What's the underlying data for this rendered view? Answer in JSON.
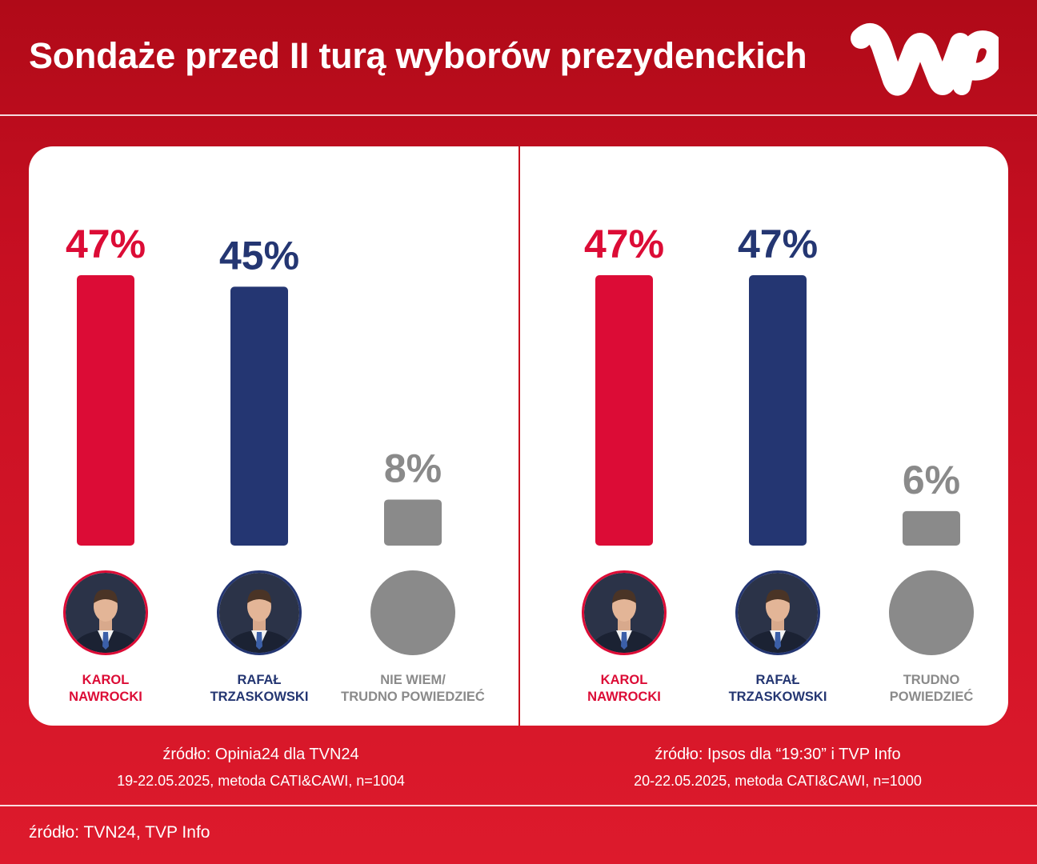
{
  "title": "Sondaże przed II turą wyborów prezydenckich",
  "logo": {
    "name": "wp-logo"
  },
  "colors": {
    "red": "#dc0c36",
    "navy": "#243672",
    "gray": "#8a8a8a",
    "background": "#c70f22"
  },
  "chart_data": [
    {
      "type": "bar",
      "categories": [
        "KAROL\nNAWROCKI",
        "RAFAŁ\nTRZASKOWSKI",
        "NIE WIEM/\nTRUDNO POWIEDZIEĆ"
      ],
      "values": [
        47,
        45,
        8
      ],
      "value_labels": [
        "47%",
        "45%",
        "8%"
      ],
      "colors": [
        "#dc0c36",
        "#243672",
        "#8a8a8a"
      ],
      "ylim": [
        0,
        47
      ],
      "source": "źródło: Opinia24 dla TVN24",
      "method": "19-22.05.2025, metoda CATI&CAWI, n=1004"
    },
    {
      "type": "bar",
      "categories": [
        "KAROL\nNAWROCKI",
        "RAFAŁ\nTRZASKOWSKI",
        "TRUDNO\nPOWIEDZIEĆ"
      ],
      "values": [
        47,
        47,
        6
      ],
      "value_labels": [
        "47%",
        "47%",
        "6%"
      ],
      "colors": [
        "#dc0c36",
        "#243672",
        "#8a8a8a"
      ],
      "ylim": [
        0,
        47
      ],
      "source": "źródło: Ipsos dla “19:30” i TVP Info",
      "method": "20-22.05.2025, metoda CATI&CAWI, n=1000"
    }
  ],
  "footer": {
    "source": "źródło: TVN24, TVP Info"
  }
}
